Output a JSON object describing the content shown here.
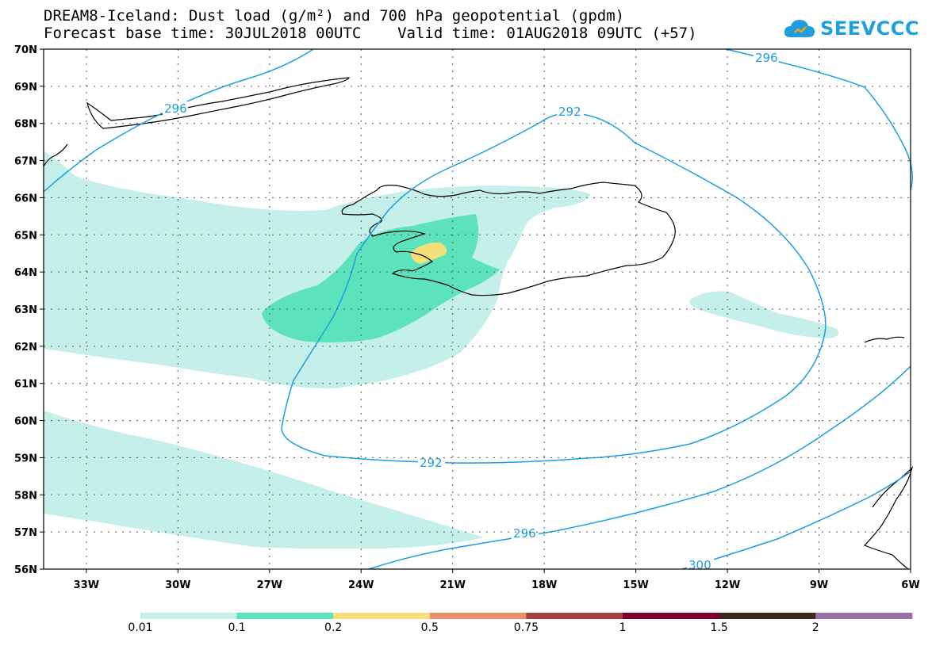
{
  "title": {
    "line1": "DREAM8-Iceland: Dust load (g/m²) and 700 hPa geopotential (gpdm)",
    "line2": "Forecast base time: 30JUL2018 00UTC    Valid time: 01AUG2018 09UTC (+57)"
  },
  "logo": {
    "text": "SEEVCCC",
    "icon": "cloud-icon",
    "color": "#1f9fe0"
  },
  "map": {
    "lat_range": [
      56,
      70
    ],
    "lon_range": [
      -34.4,
      -6
    ],
    "lat_labels": [
      "70N",
      "69N",
      "68N",
      "67N",
      "66N",
      "65N",
      "64N",
      "63N",
      "62N",
      "61N",
      "60N",
      "59N",
      "58N",
      "57N",
      "56N"
    ],
    "lon_labels": [
      "33W",
      "30W",
      "27W",
      "24W",
      "21W",
      "18W",
      "15W",
      "12W",
      "9W",
      "6W"
    ],
    "contour_color": "#1a9fe6",
    "contour_labels": [
      "296",
      "296",
      "292",
      "292",
      "296",
      "300"
    ]
  },
  "legend": {
    "labels": [
      "0.01",
      "0.1",
      "0.2",
      "0.5",
      "0.75",
      "1",
      "1.5",
      "2"
    ],
    "colors": [
      "#c5f0e9",
      "#5de3bb",
      "#f7e07a",
      "#e8906a",
      "#a84040",
      "#800030",
      "#3a2a20",
      "#9a70a8"
    ]
  }
}
